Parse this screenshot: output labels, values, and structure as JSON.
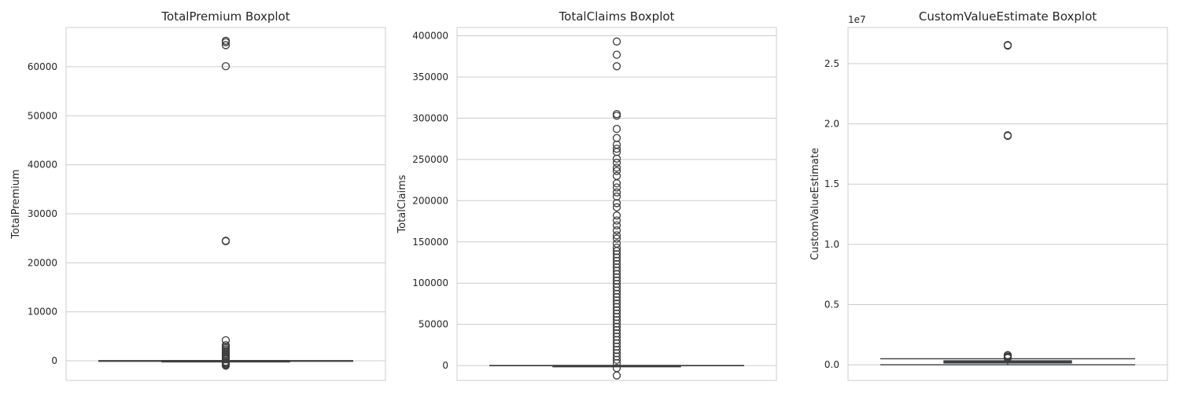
{
  "chart_data": [
    {
      "type": "boxplot",
      "title": "TotalPremium Boxplot",
      "ylabel": "TotalPremium",
      "ylim": [
        -4000,
        68000
      ],
      "yticks": [
        0,
        10000,
        20000,
        30000,
        40000,
        50000,
        60000
      ],
      "ytick_labels": [
        "0",
        "10000",
        "20000",
        "30000",
        "40000",
        "50000",
        "60000"
      ],
      "offset_text": "",
      "grid": true,
      "box": {
        "whisker_low": -100,
        "q1": 0,
        "median": 2,
        "q3": 21,
        "whisker_high": 40
      },
      "outliers": [
        65300,
        65000,
        64400,
        60100,
        24500,
        24400,
        4200,
        3200,
        2900,
        2600,
        2300,
        2000,
        1700,
        1400,
        1100,
        800,
        500,
        300,
        -200,
        -400,
        -600,
        -800,
        -1000
      ]
    },
    {
      "type": "boxplot",
      "title": "TotalClaims Boxplot",
      "ylabel": "TotalClaims",
      "ylim": [
        -18000,
        410000
      ],
      "yticks": [
        0,
        50000,
        100000,
        150000,
        200000,
        250000,
        300000,
        350000,
        400000
      ],
      "ytick_labels": [
        "0",
        "50000",
        "100000",
        "150000",
        "200000",
        "250000",
        "300000",
        "350000",
        "400000"
      ],
      "offset_text": "",
      "grid": true,
      "box": {
        "whisker_low": 0,
        "q1": 0,
        "median": 0,
        "q3": 0,
        "whisker_high": 0
      },
      "outliers": [
        393000,
        377000,
        363000,
        305000,
        303000,
        287000,
        276000,
        268000,
        263000,
        259000,
        251000,
        246000,
        240000,
        236000,
        230000,
        221000,
        216000,
        210000,
        205000,
        197000,
        192000,
        182000,
        176000,
        170000,
        164000,
        158000,
        154000,
        148000,
        143000,
        139000,
        135000,
        131000,
        127000,
        123000,
        119000,
        115000,
        111000,
        107000,
        103000,
        99000,
        95000,
        91000,
        87000,
        83000,
        79000,
        75000,
        71000,
        67000,
        63000,
        59000,
        55000,
        51000,
        47000,
        43000,
        39000,
        35000,
        31000,
        27000,
        23000,
        19000,
        15000,
        11000,
        7000,
        3000,
        -3000,
        -12000
      ]
    },
    {
      "type": "boxplot",
      "title": "CustomValueEstimate Boxplot",
      "ylabel": "CustomValueEstimate",
      "ylim": [
        -1300000,
        28000000
      ],
      "yticks": [
        0,
        5000000,
        10000000,
        15000000,
        20000000,
        25000000
      ],
      "ytick_labels": [
        "0.0",
        "0.5",
        "1.0",
        "1.5",
        "2.0",
        "2.5"
      ],
      "offset_text": "1e7",
      "grid": true,
      "box": {
        "whisker_low": 0,
        "q1": 150000,
        "median": 230000,
        "q3": 330000,
        "whisker_high": 500000
      },
      "outliers": [
        26550000,
        26500000,
        19050000,
        19000000,
        800000,
        700000,
        650000,
        600000,
        560000
      ]
    }
  ]
}
